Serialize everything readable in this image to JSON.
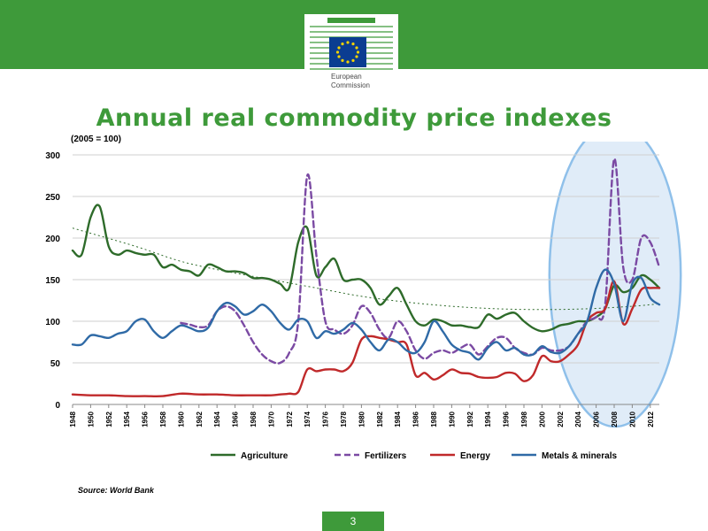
{
  "header": {
    "logo_line1": "European",
    "logo_line2": "Commission"
  },
  "slide": {
    "title": "Annual real commodity price indexes",
    "index_note": "(2005 = 100)",
    "source": "Source: World Bank",
    "page_number": "3"
  },
  "colors": {
    "header_green": "#3e9a3a",
    "agriculture": "#2e6b2a",
    "fertilizers": "#7b4aa3",
    "energy": "#c0292a",
    "metals": "#2f6aa6",
    "trend": "#2e6b2a",
    "highlight_fill": "#d6e6f6",
    "highlight_stroke": "#8fc0ea"
  },
  "chart_data": {
    "type": "line",
    "ylim": [
      0,
      300
    ],
    "yticks": [
      0,
      50,
      100,
      150,
      200,
      250,
      300
    ],
    "xlim": [
      1948,
      2013
    ],
    "xticks": [
      1948,
      1950,
      1952,
      1954,
      1956,
      1958,
      1960,
      1962,
      1964,
      1966,
      1968,
      1970,
      1972,
      1974,
      1976,
      1978,
      1980,
      1982,
      1984,
      1986,
      1988,
      1990,
      1992,
      1994,
      1996,
      1998,
      2000,
      2002,
      2004,
      2006,
      2008,
      2010,
      2012
    ],
    "legend_position": "bottom",
    "grid": "horizontal",
    "series": [
      {
        "name": "Agriculture",
        "style": "solid",
        "x": [
          1948,
          1949,
          1950,
          1951,
          1952,
          1953,
          1954,
          1955,
          1956,
          1957,
          1958,
          1959,
          1960,
          1961,
          1962,
          1963,
          1964,
          1965,
          1966,
          1967,
          1968,
          1969,
          1970,
          1971,
          1972,
          1973,
          1974,
          1975,
          1976,
          1977,
          1978,
          1979,
          1980,
          1981,
          1982,
          1983,
          1984,
          1985,
          1986,
          1987,
          1988,
          1989,
          1990,
          1991,
          1992,
          1993,
          1994,
          1995,
          1996,
          1997,
          1998,
          1999,
          2000,
          2001,
          2002,
          2003,
          2004,
          2005,
          2006,
          2007,
          2008,
          2009,
          2010,
          2011,
          2012,
          2013
        ],
        "values": [
          185,
          180,
          225,
          238,
          190,
          180,
          185,
          182,
          180,
          180,
          165,
          168,
          162,
          160,
          155,
          168,
          165,
          160,
          160,
          158,
          152,
          152,
          150,
          145,
          140,
          195,
          212,
          155,
          165,
          175,
          150,
          150,
          150,
          140,
          120,
          130,
          140,
          120,
          100,
          95,
          102,
          100,
          95,
          95,
          93,
          93,
          108,
          103,
          108,
          110,
          100,
          92,
          88,
          90,
          95,
          97,
          100,
          100,
          105,
          115,
          143,
          135,
          140,
          155,
          150,
          140
        ]
      },
      {
        "name": "Fertilizers",
        "style": "dashed",
        "x": [
          1960,
          1961,
          1962,
          1963,
          1964,
          1965,
          1966,
          1967,
          1968,
          1969,
          1970,
          1971,
          1972,
          1973,
          1974,
          1975,
          1976,
          1977,
          1978,
          1979,
          1980,
          1981,
          1982,
          1983,
          1984,
          1985,
          1986,
          1987,
          1988,
          1989,
          1990,
          1991,
          1992,
          1993,
          1994,
          1995,
          1996,
          1997,
          1998,
          1999,
          2000,
          2001,
          2002,
          2003,
          2004,
          2005,
          2006,
          2007,
          2008,
          2009,
          2010,
          2011,
          2012,
          2013
        ],
        "values": [
          98,
          96,
          93,
          95,
          112,
          118,
          112,
          95,
          75,
          60,
          52,
          50,
          62,
          100,
          275,
          180,
          100,
          90,
          85,
          95,
          118,
          110,
          90,
          80,
          100,
          88,
          65,
          55,
          62,
          65,
          62,
          68,
          72,
          60,
          70,
          80,
          80,
          68,
          62,
          60,
          68,
          65,
          65,
          70,
          85,
          100,
          105,
          120,
          295,
          165,
          150,
          200,
          195,
          165
        ]
      },
      {
        "name": "Energy",
        "style": "solid",
        "x": [
          1948,
          1950,
          1952,
          1954,
          1956,
          1958,
          1960,
          1962,
          1964,
          1966,
          1968,
          1970,
          1971,
          1972,
          1973,
          1974,
          1975,
          1976,
          1977,
          1978,
          1979,
          1980,
          1981,
          1982,
          1983,
          1984,
          1985,
          1986,
          1987,
          1988,
          1989,
          1990,
          1991,
          1992,
          1993,
          1994,
          1995,
          1996,
          1997,
          1998,
          1999,
          2000,
          2001,
          2002,
          2003,
          2004,
          2005,
          2006,
          2007,
          2008,
          2009,
          2010,
          2011,
          2012,
          2013
        ],
        "values": [
          12,
          11,
          11,
          10,
          10,
          10,
          13,
          12,
          12,
          11,
          11,
          11,
          12,
          13,
          15,
          42,
          40,
          42,
          42,
          40,
          50,
          78,
          82,
          80,
          78,
          75,
          72,
          35,
          38,
          30,
          35,
          42,
          38,
          37,
          33,
          32,
          33,
          38,
          37,
          28,
          35,
          58,
          52,
          52,
          60,
          72,
          100,
          110,
          115,
          148,
          97,
          115,
          138,
          140,
          140
        ]
      },
      {
        "name": "Metals & minerals",
        "style": "solid",
        "x": [
          1948,
          1949,
          1950,
          1951,
          1952,
          1953,
          1954,
          1955,
          1956,
          1957,
          1958,
          1959,
          1960,
          1961,
          1962,
          1963,
          1964,
          1965,
          1966,
          1967,
          1968,
          1969,
          1970,
          1971,
          1972,
          1973,
          1974,
          1975,
          1976,
          1977,
          1978,
          1979,
          1980,
          1981,
          1982,
          1983,
          1984,
          1985,
          1986,
          1987,
          1988,
          1989,
          1990,
          1991,
          1992,
          1993,
          1994,
          1995,
          1996,
          1997,
          1998,
          1999,
          2000,
          2001,
          2002,
          2003,
          2004,
          2005,
          2006,
          2007,
          2008,
          2009,
          2010,
          2011,
          2012,
          2013
        ],
        "values": [
          72,
          72,
          83,
          82,
          80,
          85,
          88,
          100,
          102,
          88,
          80,
          88,
          95,
          92,
          88,
          92,
          112,
          122,
          118,
          108,
          112,
          120,
          112,
          98,
          90,
          102,
          100,
          80,
          88,
          85,
          90,
          98,
          90,
          75,
          65,
          78,
          75,
          65,
          62,
          75,
          100,
          88,
          72,
          65,
          62,
          54,
          68,
          75,
          65,
          68,
          60,
          60,
          70,
          63,
          62,
          70,
          85,
          100,
          140,
          162,
          145,
          100,
          145,
          152,
          128,
          120
        ]
      }
    ],
    "trend": {
      "style": "dotted",
      "x": [
        1948,
        1955,
        1960,
        1965,
        1970,
        1975,
        1980,
        1985,
        1990,
        1995,
        2000,
        2005,
        2010,
        2013
      ],
      "values": [
        212,
        190,
        172,
        160,
        150,
        140,
        130,
        123,
        118,
        115,
        114,
        115,
        118,
        121
      ]
    },
    "highlight": {
      "shape": "ellipse",
      "x_range": [
        2002,
        2014
      ],
      "y_range": [
        0,
        300
      ]
    }
  }
}
